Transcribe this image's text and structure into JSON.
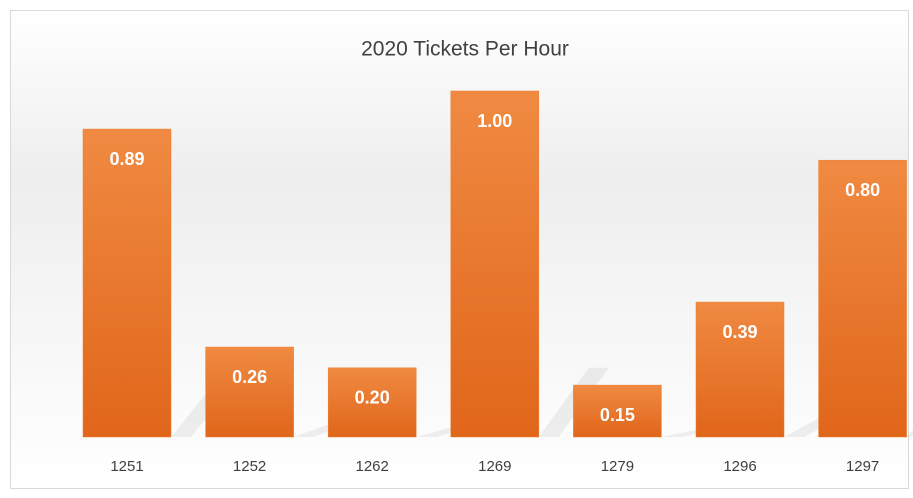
{
  "chart_data": {
    "type": "bar",
    "title": "2020 Tickets Per Hour",
    "categories": [
      "1251",
      "1252",
      "1262",
      "1269",
      "1279",
      "1296",
      "1297"
    ],
    "values": [
      0.89,
      0.26,
      0.2,
      1,
      0.15,
      0.39,
      0.8
    ],
    "value_labels": [
      "0.89",
      "0.26",
      "0.20",
      "1.00",
      "0.15",
      "0.39",
      "0.80"
    ],
    "color": "#ed7d31"
  }
}
